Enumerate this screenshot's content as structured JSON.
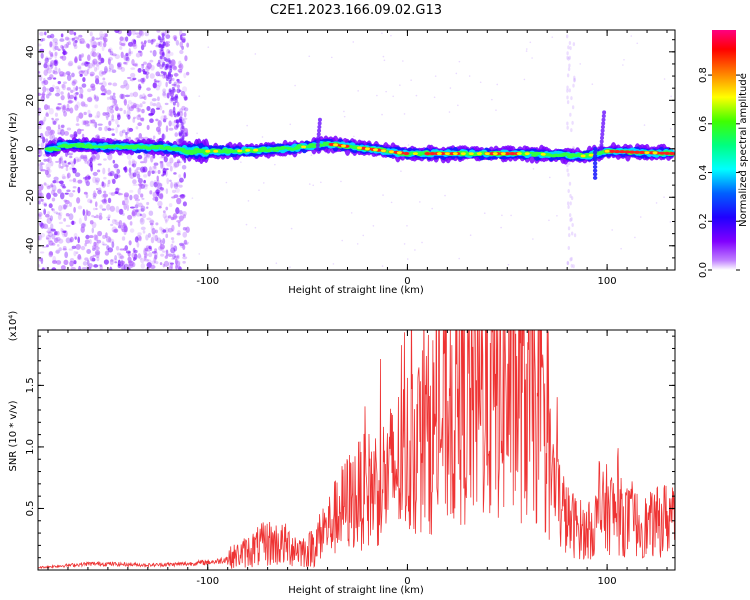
{
  "title": "C2E1.2023.166.09.02.G13",
  "chart_data": [
    {
      "type": "heatmap",
      "xlabel": "Height of straight line (km)",
      "ylabel": "Frequency (Hz)",
      "xlim": [
        -185,
        134
      ],
      "ylim": [
        -50,
        49
      ],
      "xticks": [
        -100,
        0,
        100
      ],
      "yticks": [
        -40,
        -20,
        0,
        20,
        40
      ],
      "colorbar": {
        "label": "Normalized spectral amplitude",
        "range": [
          0,
          1
        ],
        "ticks": [
          "0.0",
          "0.2",
          "0.4",
          "0.6",
          "0.8"
        ],
        "colormap": [
          "#ffffff",
          "#8000ff",
          "#0000ff",
          "#00ffff",
          "#00ff00",
          "#ffff00",
          "#ff0000",
          "#ff0080"
        ]
      },
      "ridge": [
        {
          "x": -175,
          "freq": 1.5
        },
        {
          "x": -150,
          "freq": 1.0
        },
        {
          "x": -120,
          "freq": 0.5
        },
        {
          "x": -110,
          "freq": -1.0
        },
        {
          "x": -90,
          "freq": -1.0
        },
        {
          "x": -60,
          "freq": 0.0
        },
        {
          "x": -40,
          "freq": 2.0
        },
        {
          "x": -20,
          "freq": 0.0
        },
        {
          "x": 0,
          "freq": -2.0
        },
        {
          "x": 30,
          "freq": -2.0
        },
        {
          "x": 60,
          "freq": -2.0
        },
        {
          "x": 90,
          "freq": -3.0
        },
        {
          "x": 100,
          "freq": -1.0
        },
        {
          "x": 134,
          "freq": -2.0
        }
      ]
    },
    {
      "type": "line",
      "xlabel": "Height of straight line (km)",
      "ylabel": "SNR (10 * v/v)",
      "y_scale_note": "(x10⁴)",
      "xlim": [
        -185,
        134
      ],
      "ylim": [
        0,
        19500
      ],
      "xticks": [
        -100,
        0,
        100
      ],
      "ytick_labels": [
        "0.5",
        "1.0",
        "1.5"
      ],
      "ytick_values": [
        5000,
        10000,
        15000
      ],
      "color": "#ee3333",
      "series": [
        {
          "x": -185,
          "y": 200
        },
        {
          "x": -160,
          "y": 500
        },
        {
          "x": -150,
          "y": 500
        },
        {
          "x": -130,
          "y": 400
        },
        {
          "x": -110,
          "y": 500
        },
        {
          "x": -95,
          "y": 700
        },
        {
          "x": -85,
          "y": 1200
        },
        {
          "x": -70,
          "y": 2200
        },
        {
          "x": -60,
          "y": 2000
        },
        {
          "x": -50,
          "y": 1500
        },
        {
          "x": -40,
          "y": 3500
        },
        {
          "x": -30,
          "y": 5500
        },
        {
          "x": -20,
          "y": 6500
        },
        {
          "x": -10,
          "y": 7500
        },
        {
          "x": 0,
          "y": 9500
        },
        {
          "x": 10,
          "y": 11000
        },
        {
          "x": 20,
          "y": 12500
        },
        {
          "x": 30,
          "y": 13500
        },
        {
          "x": 40,
          "y": 14000
        },
        {
          "x": 50,
          "y": 14500
        },
        {
          "x": 60,
          "y": 14000
        },
        {
          "x": 65,
          "y": 13000
        },
        {
          "x": 70,
          "y": 9000
        },
        {
          "x": 75,
          "y": 6000
        },
        {
          "x": 80,
          "y": 4000
        },
        {
          "x": 90,
          "y": 3000
        },
        {
          "x": 100,
          "y": 5000
        },
        {
          "x": 110,
          "y": 4000
        },
        {
          "x": 120,
          "y": 3500
        },
        {
          "x": 134,
          "y": 4500
        }
      ]
    }
  ]
}
